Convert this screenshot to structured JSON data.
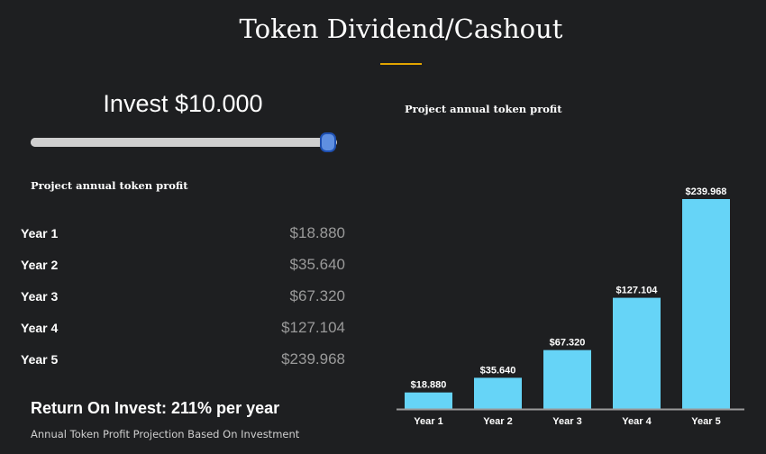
{
  "header": {
    "title": "Token Dividend/Cashout",
    "accent_color": "#e2a400"
  },
  "invest": {
    "label": "Invest $10.000",
    "slider_fraction": 0.97
  },
  "left_panel": {
    "section_label": "Project annual token profit",
    "rows": [
      {
        "year": "Year 1",
        "value": "$18.880"
      },
      {
        "year": "Year 2",
        "value": "$35.640"
      },
      {
        "year": "Year 3",
        "value": "$67.320"
      },
      {
        "year": "Year 4",
        "value": "$127.104"
      },
      {
        "year": "Year 5",
        "value": "$239.968"
      }
    ],
    "roi": "Return On Invest: 211% per year",
    "caption": "Annual Token Profit Projection Based On Investment"
  },
  "right_panel": {
    "section_label": "Project annual token profit"
  },
  "chart_data": {
    "type": "bar",
    "categories": [
      "Year 1",
      "Year 2",
      "Year 3",
      "Year 4",
      "Year 5"
    ],
    "values": [
      18880,
      35640,
      67320,
      127104,
      239968
    ],
    "data_labels": [
      "$18.880",
      "$35.640",
      "$67.320",
      "$127.104",
      "$239.968"
    ],
    "title": "",
    "xlabel": "",
    "ylabel": "",
    "ylim": [
      0,
      239968
    ],
    "grid": false,
    "bar_color": "#66d4f7",
    "axis_color": "#9a9a9a"
  }
}
